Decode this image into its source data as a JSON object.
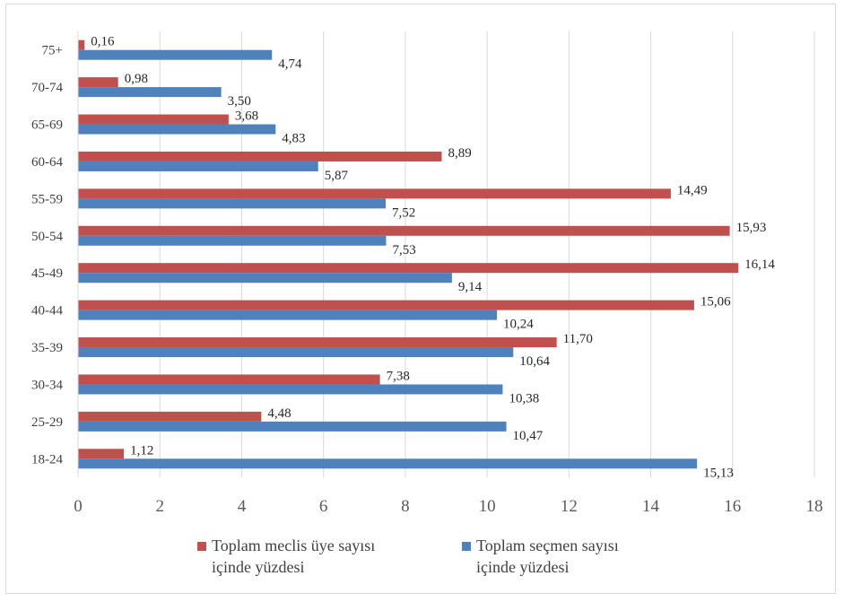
{
  "chart_data": {
    "type": "bar",
    "orientation": "horizontal",
    "categories": [
      "75+",
      "70-74",
      "65-69",
      "60-64",
      "55-59",
      "50-54",
      "45-49",
      "40-44",
      "35-39",
      "30-34",
      "25-29",
      "18-24"
    ],
    "series": [
      {
        "name_lines": [
          "Toplam meclis üye sayısı",
          "içinde yüzdesi"
        ],
        "color": "#c0504d",
        "values": [
          0.16,
          0.98,
          3.68,
          8.89,
          14.49,
          15.93,
          16.14,
          15.06,
          11.7,
          7.38,
          4.48,
          1.12
        ],
        "labels": [
          "0,16",
          "0,98",
          "3,68",
          "8,89",
          "14,49",
          "15,93",
          "16,14",
          "15,06",
          "11,70",
          "7,38",
          "4,48",
          "1,12"
        ]
      },
      {
        "name_lines": [
          "Toplam seçmen sayısı",
          "içinde yüzdesi"
        ],
        "color": "#4f81bd",
        "values": [
          4.74,
          3.5,
          4.83,
          5.87,
          7.52,
          7.53,
          9.14,
          10.24,
          10.64,
          10.38,
          10.47,
          15.13
        ],
        "labels": [
          "4,74",
          "3,50",
          "4,83",
          "5,87",
          "7,52",
          "7,53",
          "9,14",
          "10,24",
          "10,64",
          "10,38",
          "10,47",
          "15,13"
        ]
      }
    ],
    "xlim": [
      0,
      18
    ],
    "x_ticks": [
      "0",
      "2",
      "4",
      "6",
      "8",
      "10",
      "12",
      "14",
      "16",
      "18"
    ],
    "grid": true,
    "legend_position": "bottom"
  }
}
